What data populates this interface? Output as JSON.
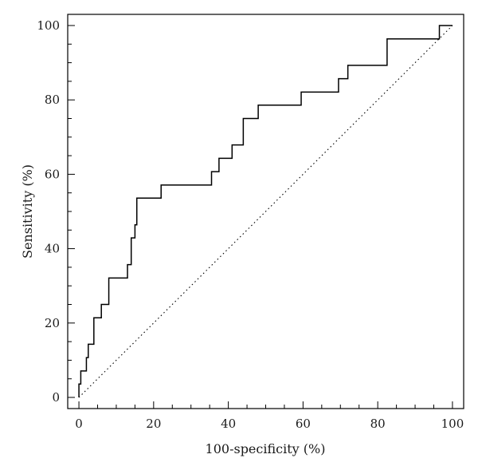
{
  "chart_data": {
    "type": "line",
    "title": "",
    "xlabel": "100-specificity (%)",
    "ylabel": "Sensitivity (%)",
    "xlim": [
      -3,
      103
    ],
    "ylim": [
      -3,
      103
    ],
    "xticks": [
      0,
      20,
      40,
      60,
      80,
      100
    ],
    "yticks": [
      0,
      20,
      40,
      60,
      80,
      100
    ],
    "minor_ticks": true,
    "grid": false,
    "legend": "none",
    "series": [
      {
        "style": "step-solid",
        "color": "#000000",
        "points": [
          [
            0,
            0
          ],
          [
            0,
            3.6
          ],
          [
            0.5,
            3.6
          ],
          [
            0.5,
            7.1
          ],
          [
            2,
            7.1
          ],
          [
            2,
            10.7
          ],
          [
            2.5,
            10.7
          ],
          [
            2.5,
            14.3
          ],
          [
            4,
            14.3
          ],
          [
            4,
            21.4
          ],
          [
            6,
            21.4
          ],
          [
            6,
            25
          ],
          [
            8,
            25
          ],
          [
            8,
            32.1
          ],
          [
            13,
            32.1
          ],
          [
            13,
            35.7
          ],
          [
            14,
            35.7
          ],
          [
            14,
            42.9
          ],
          [
            15,
            42.9
          ],
          [
            15,
            46.4
          ],
          [
            15.5,
            46.4
          ],
          [
            15.5,
            53.6
          ],
          [
            22,
            53.6
          ],
          [
            22,
            57.1
          ],
          [
            35.5,
            57.1
          ],
          [
            35.5,
            60.7
          ],
          [
            37.5,
            60.7
          ],
          [
            37.5,
            64.3
          ],
          [
            41,
            64.3
          ],
          [
            41,
            67.9
          ],
          [
            44,
            67.9
          ],
          [
            44,
            75
          ],
          [
            48,
            75
          ],
          [
            48,
            78.6
          ],
          [
            59.5,
            78.6
          ],
          [
            59.5,
            82.1
          ],
          [
            69.5,
            82.1
          ],
          [
            69.5,
            85.7
          ],
          [
            72,
            85.7
          ],
          [
            72,
            89.3
          ],
          [
            82.5,
            89.3
          ],
          [
            82.5,
            96.4
          ],
          [
            96.5,
            96.4
          ],
          [
            96.5,
            100
          ],
          [
            100,
            100
          ]
        ]
      },
      {
        "style": "dotted-reference",
        "color": "#000000",
        "points": [
          [
            0,
            0
          ],
          [
            100,
            100
          ]
        ]
      }
    ],
    "tick_labels": {
      "x": [
        "0",
        "20",
        "40",
        "60",
        "80",
        "100"
      ],
      "y": [
        "0",
        "20",
        "40",
        "60",
        "80",
        "100"
      ]
    }
  }
}
